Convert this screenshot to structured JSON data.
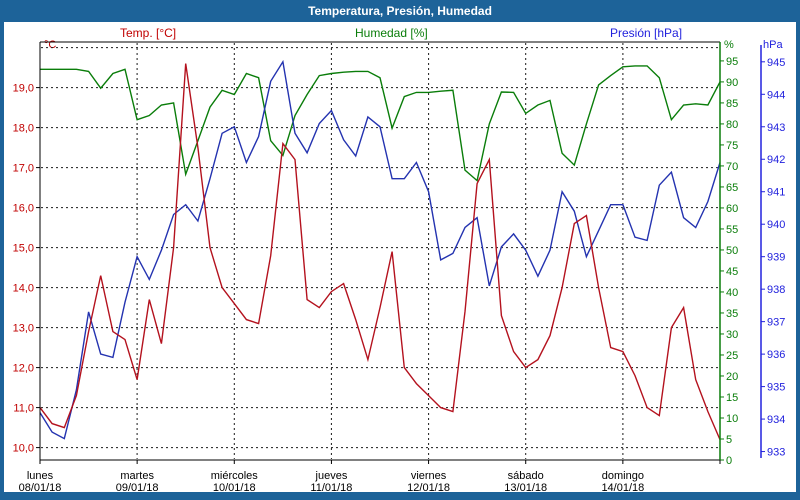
{
  "window": {
    "title": "Temperatura, Presión, Humedad"
  },
  "colors": {
    "titlebar": "#1d6399",
    "frame": "#1d6399",
    "plot_border": "#000000",
    "grid": "#1a1a1a",
    "temp_line": "#b4121e",
    "temp_text": "#c00000",
    "humidity_line": "#0a7d0a",
    "humidity_text": "#0a7d0a",
    "pressure_line": "#2433b0",
    "pressure_text": "#2222dd",
    "day_label_text": "#000000"
  },
  "chart_data": {
    "type": "line",
    "title": "Temperatura, Presión, Humedad",
    "grid": "dashed",
    "legend_position": "top",
    "time_axis": {
      "start_hour": 0,
      "step_hours": 3,
      "days": [
        {
          "name": "lunes",
          "date": "08/01/18"
        },
        {
          "name": "martes",
          "date": "09/01/18"
        },
        {
          "name": "miércoles",
          "date": "10/01/18"
        },
        {
          "name": "jueves",
          "date": "11/01/18"
        },
        {
          "name": "viernes",
          "date": "12/01/18"
        },
        {
          "name": "sábado",
          "date": "13/01/18"
        },
        {
          "name": "domingo",
          "date": "14/01/18"
        }
      ]
    },
    "axes": {
      "temp": {
        "unit": "°C",
        "side": "left",
        "label_color": "#c00000",
        "tick_labels": [
          "10,0",
          "11,0",
          "12,0",
          "13,0",
          "14,0",
          "15,0",
          "16,0",
          "17,0",
          "18,0",
          "19,0"
        ],
        "tick_values": [
          10,
          11,
          12,
          13,
          14,
          15,
          16,
          17,
          18,
          19
        ],
        "grid_values": [
          10,
          11,
          12,
          13,
          14,
          15,
          16,
          17,
          18,
          19,
          20
        ],
        "bottom_value": 9.69,
        "top_value": 20.14
      },
      "humidity": {
        "unit": "%",
        "side": "right",
        "label_color": "#0a7d0a",
        "tick_min": 0,
        "tick_max": 95,
        "tick_step": 5,
        "bottom_value": 0,
        "top_value": 99.5
      },
      "pressure": {
        "unit": "hPa",
        "side": "far-right",
        "label_color": "#2222dd",
        "tick_min": 933,
        "tick_max": 945,
        "tick_step": 1,
        "bottom_value": 932.74,
        "top_value": 945.61
      }
    },
    "series": [
      {
        "name": "Temp. [°C]",
        "axis": "temp",
        "color": "#b4121e",
        "values": [
          11.0,
          10.6,
          10.5,
          11.3,
          12.9,
          14.3,
          12.9,
          12.7,
          11.7,
          13.7,
          12.6,
          15.0,
          19.6,
          17.5,
          15.0,
          14.0,
          13.6,
          13.2,
          13.1,
          14.8,
          17.6,
          17.2,
          13.7,
          13.5,
          13.9,
          14.1,
          13.2,
          12.2,
          13.5,
          14.9,
          12.0,
          11.6,
          11.3,
          11.0,
          10.9,
          13.4,
          16.6,
          17.2,
          13.3,
          12.4,
          12.0,
          12.2,
          12.8,
          14.0,
          15.6,
          15.8,
          14.0,
          12.5,
          12.4,
          11.8,
          11.0,
          10.8,
          13.0,
          13.5,
          11.7,
          10.9,
          10.2
        ]
      },
      {
        "name": "Humedad [%]",
        "axis": "humidity",
        "color": "#0a7d0a",
        "values": [
          93,
          93,
          93,
          93,
          92.5,
          88.5,
          92,
          93,
          81,
          82,
          84.5,
          85,
          68,
          76,
          84,
          88,
          87,
          92,
          91,
          76,
          72.5,
          82,
          87,
          91.5,
          92,
          92.3,
          92.5,
          92.5,
          91,
          79,
          86.5,
          87.5,
          87.5,
          87.8,
          88,
          69,
          66.5,
          80,
          87.6,
          87.5,
          82.5,
          84.5,
          85.6,
          73,
          70.2,
          80,
          89.3,
          91.5,
          93.6,
          93.8,
          93.8,
          91,
          81,
          84.5,
          84.8,
          84.5,
          90
        ]
      },
      {
        "name": "Presión [hPa]",
        "axis": "pressure",
        "color": "#2433b0",
        "values": [
          934.2,
          933.6,
          933.4,
          934.9,
          937.3,
          936.0,
          935.9,
          937.6,
          939.0,
          938.3,
          939.2,
          940.3,
          940.6,
          940.1,
          941.4,
          942.8,
          943.0,
          941.9,
          942.7,
          944.4,
          945.0,
          942.8,
          942.2,
          943.1,
          943.5,
          942.6,
          942.1,
          943.3,
          943.0,
          941.4,
          941.4,
          941.9,
          941.0,
          938.9,
          939.1,
          939.9,
          940.2,
          938.1,
          939.3,
          939.7,
          939.2,
          938.4,
          939.2,
          941.0,
          940.4,
          939.0,
          939.8,
          940.6,
          940.6,
          939.6,
          939.5,
          941.2,
          941.6,
          940.2,
          939.9,
          940.7,
          941.9
        ]
      }
    ]
  }
}
